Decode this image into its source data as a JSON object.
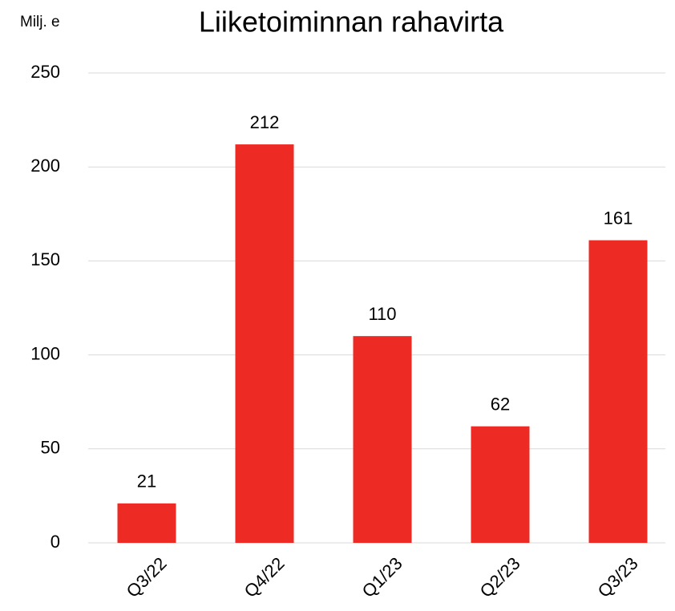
{
  "chart_data": {
    "type": "bar",
    "title": "Liiketoiminnan rahavirta",
    "y_axis_label": "Milj. e",
    "categories": [
      "Q3/22",
      "Q4/22",
      "Q1/23",
      "Q2/23",
      "Q3/23"
    ],
    "values": [
      21,
      212,
      110,
      62,
      161
    ],
    "color": "#ee2a24",
    "ylim": [
      0,
      250
    ],
    "yticks": [
      0,
      50,
      100,
      150,
      200,
      250
    ],
    "grid": true,
    "data_labels": true
  }
}
